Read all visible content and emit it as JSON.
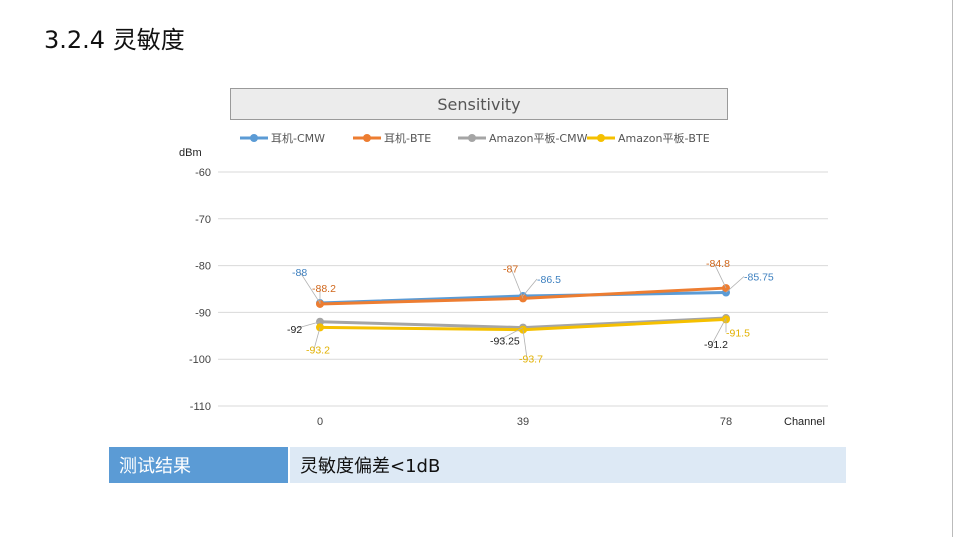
{
  "page": {
    "title": "3.2.4 灵敏度"
  },
  "chart_data": {
    "type": "line",
    "title": "Sensitivity",
    "ylabel": "dBm",
    "xlabel": "Channel",
    "categories": [
      "0",
      "39",
      "78"
    ],
    "ylim": [
      -110,
      -60
    ],
    "yticks": [
      -60,
      -70,
      -80,
      -90,
      -100,
      -110
    ],
    "grid": true,
    "legend_position": "top",
    "series": [
      {
        "name": "耳机-CMW",
        "color": "#5b9bd5",
        "values": [
          -88,
          -86.5,
          -85.75
        ],
        "labels": [
          "-88",
          "-86.5",
          "-85.75"
        ]
      },
      {
        "name": "耳机-BTE",
        "color": "#ed7d31",
        "values": [
          -88.2,
          -87,
          -84.8
        ],
        "labels": [
          "-88.2",
          "-87",
          "-84.8"
        ]
      },
      {
        "name": "Amazon平板-CMW",
        "color": "#a5a5a5",
        "values": [
          -92,
          -93.25,
          -91.2
        ],
        "labels": [
          "-92",
          "-93.25",
          "-91.2"
        ]
      },
      {
        "name": "Amazon平板-BTE",
        "color": "#f5c000",
        "values": [
          -93.2,
          -93.7,
          -91.5
        ],
        "labels": [
          "-93.2",
          "-93.7",
          "-91.5"
        ]
      }
    ]
  },
  "result": {
    "label": "测试结果",
    "value": "灵敏度偏差<1dB"
  }
}
